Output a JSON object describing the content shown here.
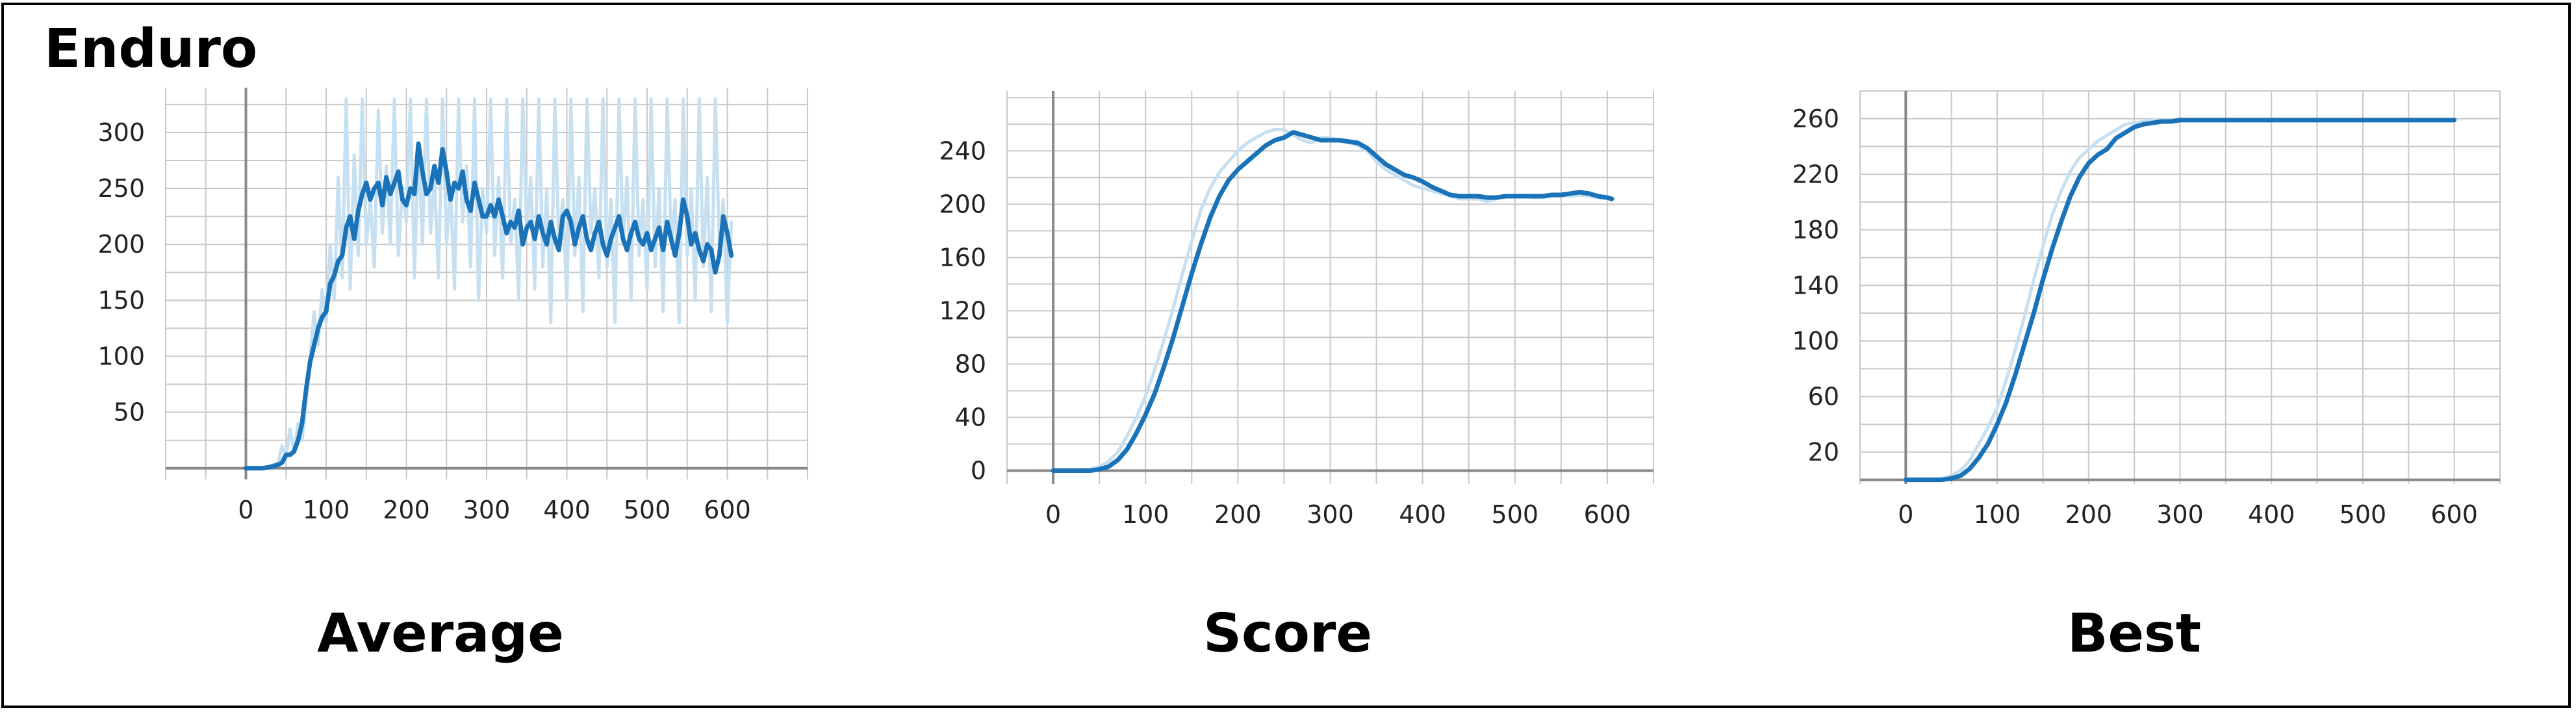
{
  "figure_title": "Enduro",
  "colors": {
    "raw": "#c6e0f1",
    "smooth": "#1a73b8",
    "grid": "#c8c8c8",
    "axis": "#888888"
  },
  "chart_data": [
    {
      "type": "line",
      "title": "Average",
      "xlim": [
        -100,
        700
      ],
      "ylim": [
        -10,
        340
      ],
      "xticks": [
        0,
        100,
        200,
        300,
        400,
        500,
        600
      ],
      "yticks": [
        50,
        100,
        150,
        200,
        250,
        300
      ],
      "series": [
        {
          "role": "raw",
          "x": [
            0,
            10,
            20,
            30,
            40,
            45,
            50,
            55,
            60,
            65,
            70,
            75,
            80,
            85,
            90,
            95,
            100,
            105,
            110,
            115,
            120,
            125,
            130,
            135,
            140,
            145,
            150,
            155,
            160,
            165,
            170,
            175,
            180,
            185,
            190,
            195,
            200,
            205,
            210,
            215,
            220,
            225,
            230,
            235,
            240,
            245,
            250,
            255,
            260,
            265,
            270,
            275,
            280,
            285,
            290,
            295,
            300,
            305,
            310,
            315,
            320,
            325,
            330,
            335,
            340,
            345,
            350,
            355,
            360,
            365,
            370,
            375,
            380,
            385,
            390,
            395,
            400,
            405,
            410,
            415,
            420,
            425,
            430,
            435,
            440,
            445,
            450,
            455,
            460,
            465,
            470,
            475,
            480,
            485,
            490,
            495,
            500,
            505,
            510,
            515,
            520,
            525,
            530,
            535,
            540,
            545,
            550,
            555,
            560,
            565,
            570,
            575,
            580,
            585,
            590,
            595,
            600,
            605
          ],
          "y": [
            0,
            0,
            0,
            2,
            5,
            20,
            10,
            35,
            15,
            40,
            25,
            60,
            100,
            140,
            110,
            160,
            130,
            200,
            150,
            260,
            170,
            330,
            160,
            280,
            190,
            330,
            200,
            240,
            180,
            320,
            210,
            270,
            200,
            330,
            190,
            250,
            220,
            330,
            170,
            290,
            200,
            330,
            210,
            260,
            170,
            330,
            200,
            250,
            160,
            330,
            220,
            270,
            180,
            330,
            150,
            250,
            210,
            330,
            190,
            260,
            170,
            330,
            200,
            240,
            150,
            330,
            210,
            260,
            160,
            330,
            180,
            250,
            130,
            330,
            200,
            240,
            150,
            330,
            190,
            260,
            140,
            330,
            210,
            250,
            170,
            330,
            180,
            240,
            130,
            330,
            200,
            260,
            150,
            330,
            190,
            240,
            160,
            330,
            180,
            250,
            140,
            330,
            200,
            240,
            130,
            330,
            190,
            250,
            150,
            330,
            180,
            260,
            140,
            330,
            200,
            240,
            130,
            220
          ]
        },
        {
          "role": "smooth",
          "x": [
            0,
            10,
            20,
            30,
            40,
            45,
            50,
            55,
            60,
            65,
            70,
            75,
            80,
            85,
            90,
            95,
            100,
            105,
            110,
            115,
            120,
            125,
            130,
            135,
            140,
            145,
            150,
            155,
            160,
            165,
            170,
            175,
            180,
            185,
            190,
            195,
            200,
            205,
            210,
            215,
            220,
            225,
            230,
            235,
            240,
            245,
            250,
            255,
            260,
            265,
            270,
            275,
            280,
            285,
            290,
            295,
            300,
            305,
            310,
            315,
            320,
            325,
            330,
            335,
            340,
            345,
            350,
            355,
            360,
            365,
            370,
            375,
            380,
            385,
            390,
            395,
            400,
            405,
            410,
            415,
            420,
            425,
            430,
            435,
            440,
            445,
            450,
            455,
            460,
            465,
            470,
            475,
            480,
            485,
            490,
            495,
            500,
            505,
            510,
            515,
            520,
            525,
            530,
            535,
            540,
            545,
            550,
            555,
            560,
            565,
            570,
            575,
            580,
            585,
            590,
            595,
            600,
            605
          ],
          "y": [
            0,
            0,
            0,
            1,
            3,
            5,
            12,
            12,
            15,
            25,
            40,
            70,
            95,
            110,
            125,
            135,
            140,
            165,
            172,
            185,
            190,
            215,
            225,
            205,
            230,
            245,
            255,
            240,
            250,
            255,
            235,
            260,
            245,
            255,
            265,
            240,
            235,
            250,
            245,
            290,
            265,
            245,
            250,
            270,
            255,
            285,
            265,
            240,
            255,
            250,
            265,
            240,
            230,
            255,
            240,
            225,
            225,
            235,
            225,
            240,
            225,
            210,
            220,
            215,
            230,
            200,
            215,
            220,
            205,
            225,
            210,
            200,
            220,
            205,
            195,
            225,
            230,
            220,
            200,
            215,
            225,
            205,
            195,
            210,
            220,
            200,
            190,
            205,
            215,
            225,
            205,
            195,
            210,
            220,
            205,
            200,
            210,
            195,
            205,
            215,
            195,
            220,
            205,
            190,
            210,
            240,
            225,
            200,
            210,
            195,
            185,
            200,
            195,
            175,
            190,
            225,
            210,
            190
          ]
        }
      ]
    },
    {
      "type": "line",
      "title": "Score",
      "xlim": [
        -50,
        650
      ],
      "ylim": [
        -10,
        285
      ],
      "xticks": [
        0,
        100,
        200,
        300,
        400,
        500,
        600
      ],
      "yticks": [
        0,
        40,
        80,
        120,
        160,
        200,
        240
      ],
      "series": [
        {
          "role": "raw",
          "x": [
            0,
            20,
            40,
            50,
            60,
            70,
            80,
            90,
            100,
            110,
            120,
            130,
            140,
            150,
            160,
            170,
            180,
            190,
            200,
            210,
            220,
            230,
            240,
            250,
            260,
            270,
            280,
            290,
            300,
            310,
            320,
            330,
            340,
            350,
            360,
            370,
            380,
            390,
            400,
            410,
            420,
            430,
            440,
            450,
            460,
            470,
            480,
            490,
            500,
            510,
            520,
            530,
            540,
            550,
            560,
            570,
            580,
            590,
            600,
            605
          ],
          "y": [
            0,
            0,
            1,
            3,
            7,
            14,
            26,
            40,
            56,
            76,
            98,
            122,
            148,
            172,
            196,
            212,
            224,
            232,
            240,
            246,
            250,
            254,
            256,
            256,
            252,
            248,
            246,
            250,
            250,
            248,
            246,
            244,
            240,
            232,
            226,
            222,
            218,
            214,
            212,
            210,
            208,
            206,
            204,
            204,
            204,
            202,
            204,
            206,
            206,
            206,
            205,
            205,
            206,
            206,
            206,
            207,
            206,
            205,
            204,
            203
          ]
        },
        {
          "role": "smooth",
          "x": [
            0,
            20,
            40,
            50,
            60,
            70,
            80,
            90,
            100,
            110,
            120,
            130,
            140,
            150,
            160,
            170,
            180,
            190,
            200,
            210,
            220,
            230,
            240,
            250,
            260,
            270,
            280,
            290,
            300,
            310,
            320,
            330,
            340,
            350,
            360,
            370,
            380,
            390,
            400,
            410,
            420,
            430,
            440,
            450,
            460,
            470,
            480,
            490,
            500,
            510,
            520,
            530,
            540,
            550,
            560,
            570,
            580,
            590,
            600,
            605
          ],
          "y": [
            0,
            0,
            0,
            1,
            3,
            8,
            16,
            28,
            42,
            58,
            78,
            100,
            124,
            148,
            170,
            190,
            206,
            218,
            226,
            232,
            238,
            244,
            248,
            250,
            254,
            252,
            250,
            248,
            248,
            248,
            247,
            246,
            242,
            236,
            230,
            226,
            222,
            220,
            217,
            213,
            210,
            207,
            206,
            206,
            206,
            205,
            205,
            206,
            206,
            206,
            206,
            206,
            207,
            207,
            208,
            209,
            208,
            206,
            205,
            204
          ]
        }
      ]
    },
    {
      "type": "line",
      "title": "Best",
      "xlim": [
        -50,
        650
      ],
      "ylim": [
        -3,
        280
      ],
      "xticks": [
        0,
        100,
        200,
        300,
        400,
        500,
        600
      ],
      "yticks": [
        20,
        60,
        100,
        140,
        180,
        220,
        260
      ],
      "series": [
        {
          "role": "raw",
          "x": [
            0,
            20,
            40,
            50,
            60,
            70,
            80,
            90,
            100,
            110,
            120,
            130,
            140,
            150,
            160,
            170,
            180,
            190,
            200,
            210,
            220,
            230,
            240,
            250,
            260,
            270,
            280,
            290,
            300,
            350,
            400,
            450,
            500,
            550,
            600
          ],
          "y": [
            0,
            0,
            1,
            3,
            7,
            14,
            26,
            38,
            52,
            72,
            94,
            118,
            144,
            168,
            190,
            208,
            222,
            232,
            238,
            244,
            248,
            252,
            256,
            257,
            258,
            259,
            259,
            259,
            259,
            259,
            259,
            259,
            259,
            259,
            259
          ]
        },
        {
          "role": "smooth",
          "x": [
            0,
            20,
            40,
            50,
            60,
            70,
            80,
            90,
            100,
            110,
            120,
            130,
            140,
            150,
            160,
            170,
            180,
            190,
            200,
            210,
            220,
            230,
            240,
            250,
            260,
            270,
            280,
            290,
            300,
            350,
            400,
            450,
            500,
            550,
            600
          ],
          "y": [
            0,
            0,
            0,
            1,
            3,
            8,
            16,
            26,
            40,
            56,
            76,
            98,
            120,
            144,
            166,
            186,
            204,
            218,
            228,
            234,
            238,
            246,
            250,
            254,
            256,
            257,
            258,
            258,
            259,
            259,
            259,
            259,
            259,
            259,
            259
          ]
        }
      ]
    }
  ]
}
